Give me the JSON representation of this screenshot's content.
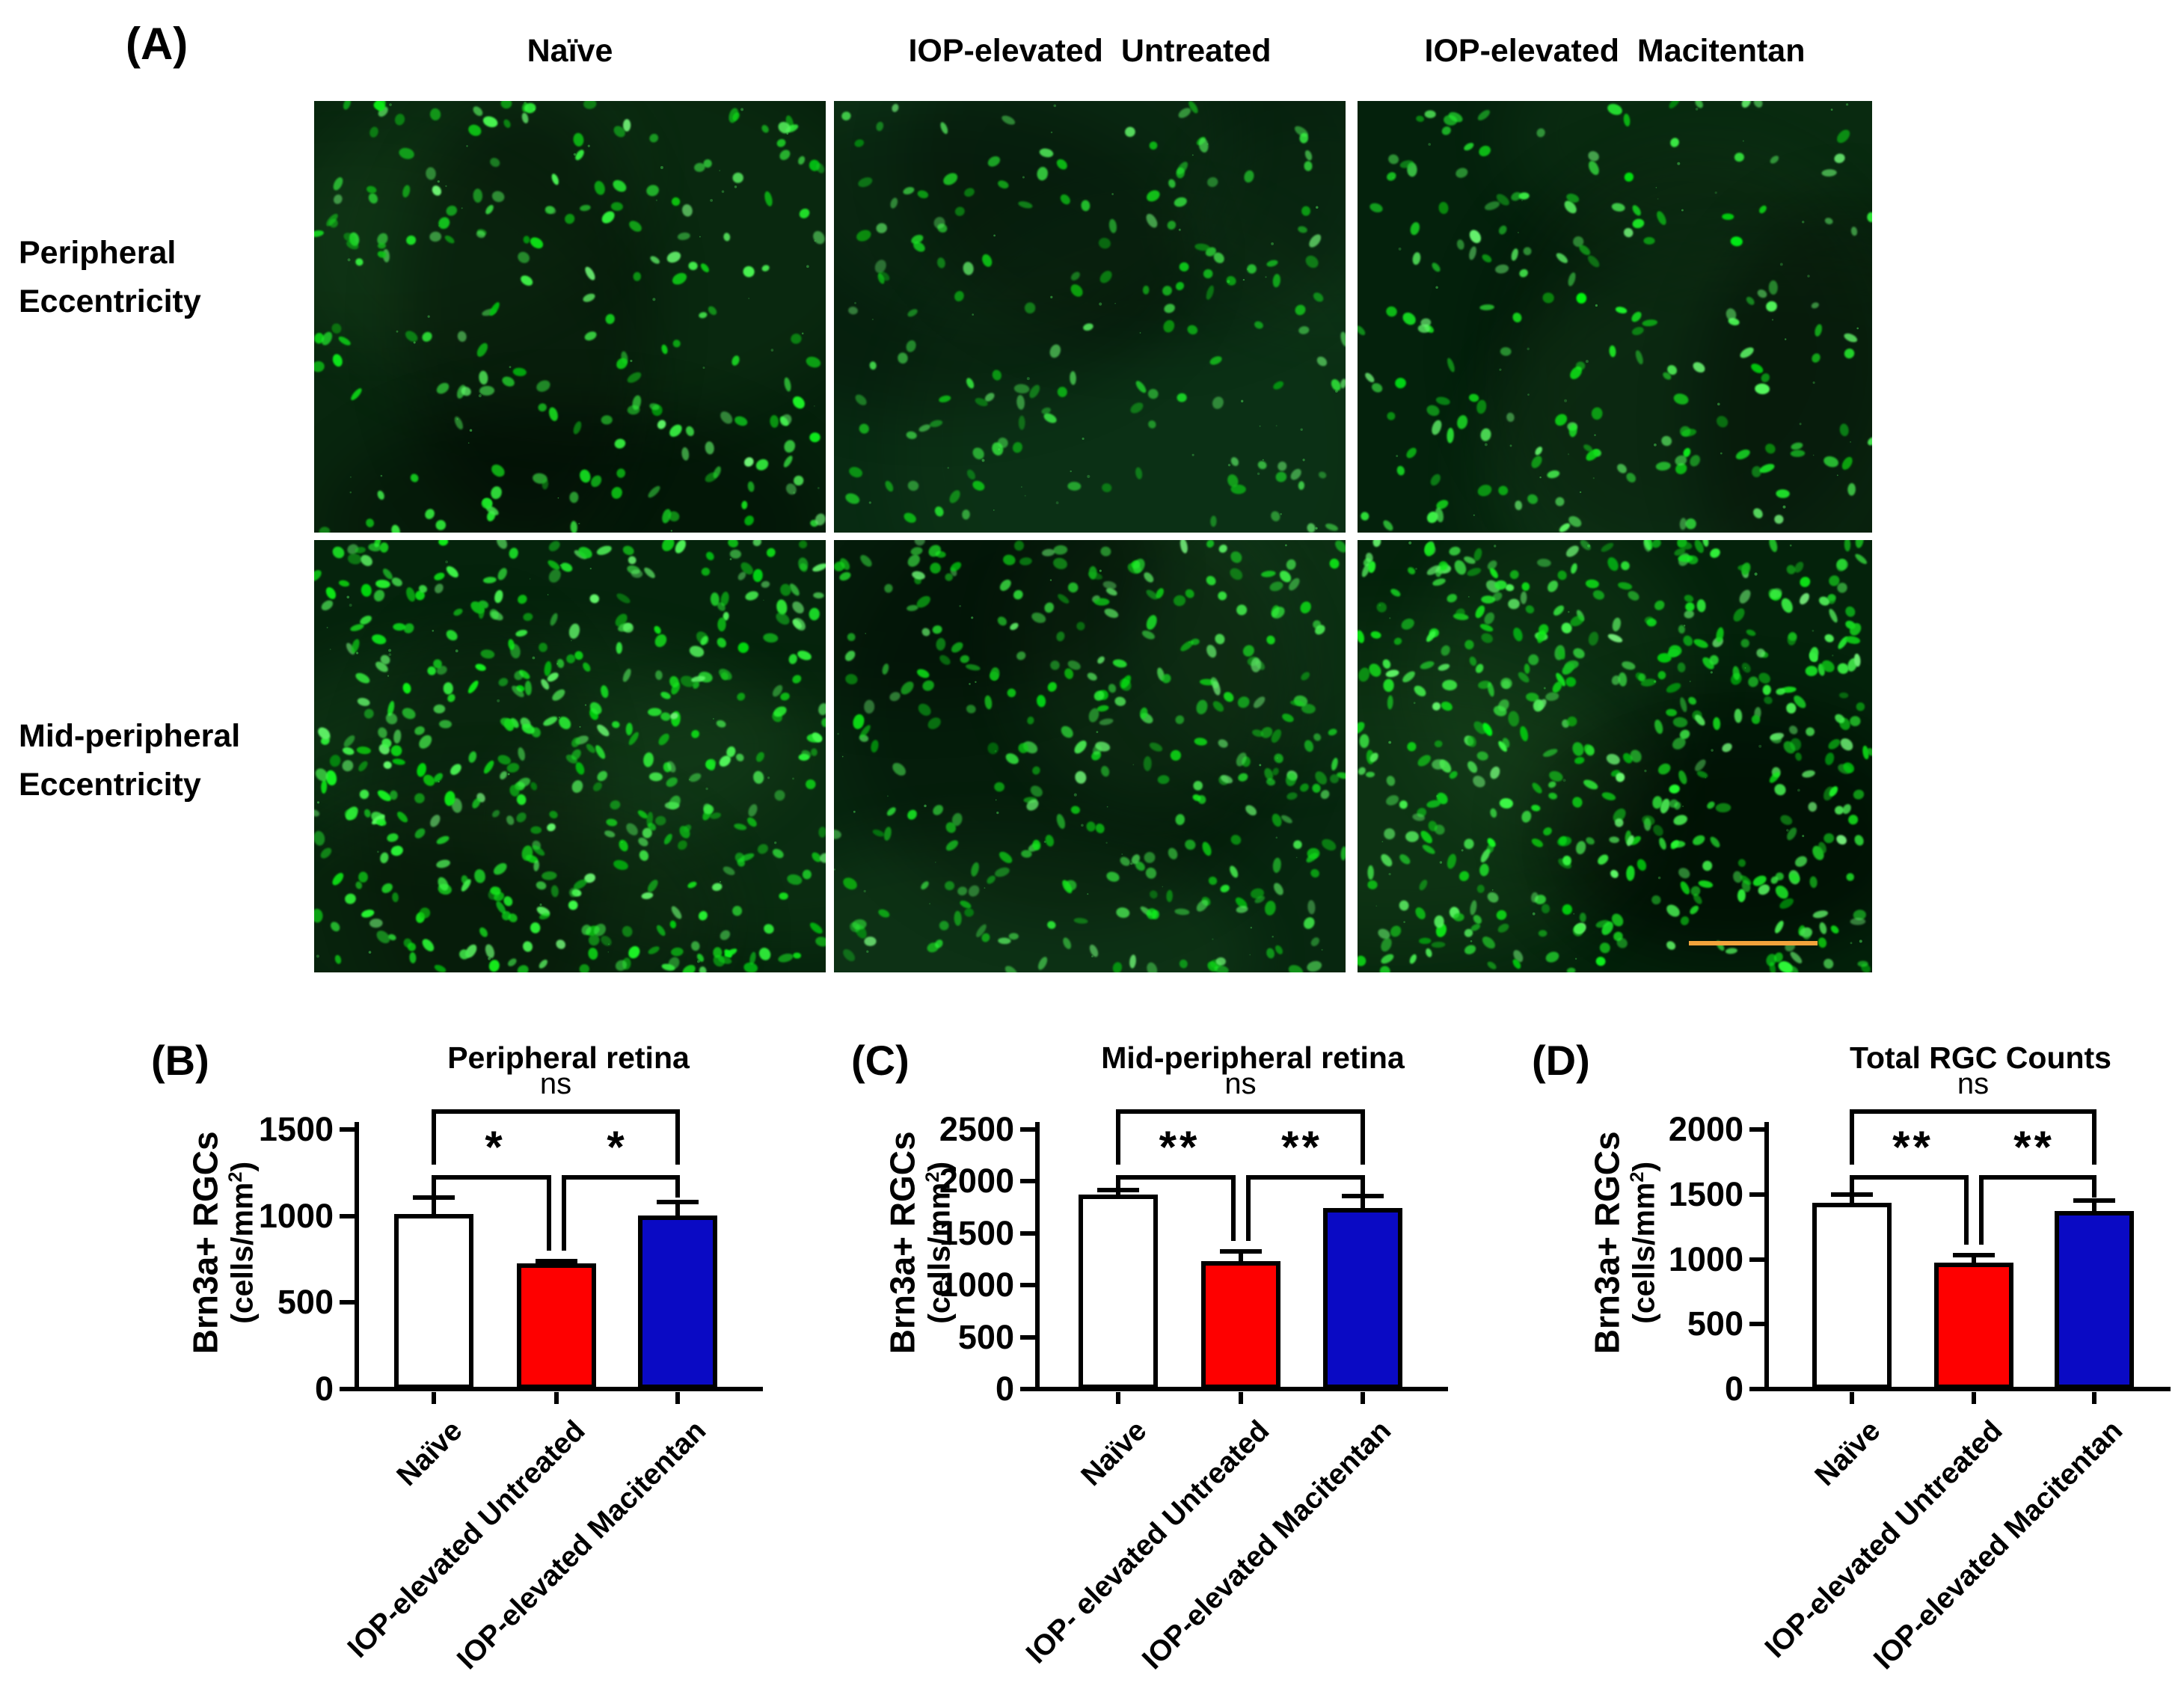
{
  "figure": {
    "panel_a": {
      "label": "(A)",
      "column_headers": [
        "Naïve",
        "IOP-elevated  Untreated",
        "IOP-elevated  Macitentan"
      ],
      "row_labels": [
        [
          "Peripheral",
          "Eccentricity"
        ],
        [
          "Mid-peripheral",
          "Eccentricity"
        ]
      ],
      "stain_color": "#21d021",
      "scale_bar_color": "#F2A33C",
      "micrographs": [
        {
          "name": "peripheral-naive",
          "row": "Peripheral Eccentricity",
          "column": "Naïve",
          "cell_count": 190,
          "brightness": 1.0,
          "bg": "#05200B"
        },
        {
          "name": "peripheral-untreated",
          "row": "Peripheral Eccentricity",
          "column": "IOP-elevated Untreated",
          "cell_count": 150,
          "brightness": 0.85,
          "bg": "#082A12"
        },
        {
          "name": "peripheral-macitentan",
          "row": "Peripheral Eccentricity",
          "column": "IOP-elevated Macitentan",
          "cell_count": 170,
          "brightness": 1.0,
          "bg": "#04210C"
        },
        {
          "name": "midperipheral-naive",
          "row": "Mid-peripheral Eccentricity",
          "column": "Naïve",
          "cell_count": 420,
          "brightness": 1.0,
          "bg": "#05230C"
        },
        {
          "name": "midperipheral-untreated",
          "row": "Mid-peripheral Eccentricity",
          "column": "IOP-elevated Untreated",
          "cell_count": 300,
          "brightness": 0.9,
          "bg": "#07260F"
        },
        {
          "name": "midperipheral-macitentan",
          "row": "Mid-peripheral Eccentricity",
          "column": "IOP-elevated Macitentan",
          "cell_count": 460,
          "brightness": 1.0,
          "bg": "#04220B"
        }
      ]
    }
  },
  "chart_data": [
    {
      "type": "bar",
      "panel_label": "(B)",
      "title": "Peripheral retina",
      "ylabel_line1": "Brn3a+ RGCs",
      "ylabel_line2": "(cells/mm²)",
      "xlabel": "",
      "categories": [
        "Naïve",
        "IOP-elevated Untreated",
        "IOP-elevated Macitentan"
      ],
      "values": [
        1000,
        715,
        990
      ],
      "errors_sem": [
        105,
        25,
        90
      ],
      "bar_colors": [
        "#FFFFFF",
        "#FE0000",
        "#0A0AC4"
      ],
      "ylim": [
        0,
        1500
      ],
      "yticks": [
        0,
        500,
        1000,
        1500
      ],
      "grid": false,
      "legend": "none",
      "comparisons": [
        {
          "between": [
            0,
            2
          ],
          "label": "ns"
        },
        {
          "between": [
            0,
            1
          ],
          "label": "*"
        },
        {
          "between": [
            1,
            2
          ],
          "label": "*"
        }
      ]
    },
    {
      "type": "bar",
      "panel_label": "(C)",
      "title": "Mid-peripheral retina",
      "ylabel_line1": "Brn3a+ RGCs",
      "ylabel_line2": "(cells/mm²)",
      "xlabel": "",
      "categories": [
        "Naïve",
        "IOP- elevated Untreated",
        "IOP-elevated Macitentan"
      ],
      "values": [
        1850,
        1210,
        1720
      ],
      "errors_sem": [
        70,
        115,
        140
      ],
      "bar_colors": [
        "#FFFFFF",
        "#FE0000",
        "#0A0AC4"
      ],
      "ylim": [
        0,
        2500
      ],
      "yticks": [
        0,
        500,
        1000,
        1500,
        2000,
        2500
      ],
      "grid": false,
      "legend": "none",
      "comparisons": [
        {
          "between": [
            0,
            2
          ],
          "label": "ns"
        },
        {
          "between": [
            0,
            1
          ],
          "label": "**"
        },
        {
          "between": [
            1,
            2
          ],
          "label": "**"
        }
      ]
    },
    {
      "type": "bar",
      "panel_label": "(D)",
      "title": "Total RGC Counts",
      "ylabel_line1": "Brn3a+ RGCs",
      "ylabel_line2": "(cells/mm²)",
      "xlabel": "",
      "categories": [
        "Naïve",
        "IOP-elevated Untreated",
        "IOP-elevated Macitentan"
      ],
      "values": [
        1420,
        955,
        1355
      ],
      "errors_sem": [
        80,
        75,
        100
      ],
      "bar_colors": [
        "#FFFFFF",
        "#FE0000",
        "#0A0AC4"
      ],
      "ylim": [
        0,
        2000
      ],
      "yticks": [
        0,
        500,
        1000,
        1500,
        2000
      ],
      "grid": false,
      "legend": "none",
      "comparisons": [
        {
          "between": [
            0,
            2
          ],
          "label": "ns"
        },
        {
          "between": [
            0,
            1
          ],
          "label": "**"
        },
        {
          "between": [
            1,
            2
          ],
          "label": "**"
        }
      ]
    }
  ]
}
